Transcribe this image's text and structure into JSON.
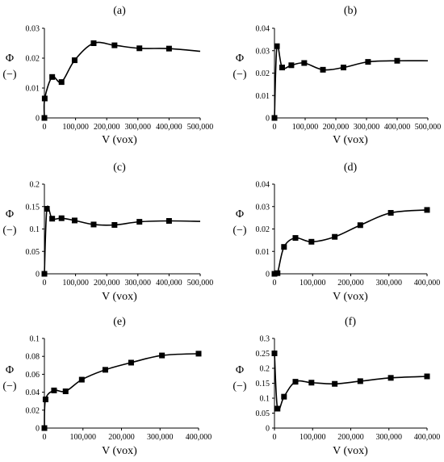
{
  "figure": {
    "chart_data": [
      {
        "type": "line",
        "label": "(a)",
        "ylabel_top": "Φ",
        "ylabel_bottom": "(−)",
        "xlabel": "V (vox)",
        "xlim": [
          0,
          500000
        ],
        "ylim": [
          0,
          0.03
        ],
        "xticks": [
          0,
          100000,
          200000,
          300000,
          400000,
          500000
        ],
        "xtick_labels": [
          "0",
          "100,000",
          "200,000",
          "300,000",
          "400,000",
          "500,000"
        ],
        "yticks": [
          0,
          0.01,
          0.02,
          0.03
        ],
        "ytick_labels": [
          "0",
          "0.01",
          "0.02",
          "0.03"
        ],
        "points": [
          [
            0,
            0
          ],
          [
            1000,
            0.0065
          ],
          [
            25000,
            0.0137
          ],
          [
            55000,
            0.012
          ],
          [
            97000,
            0.0193
          ],
          [
            158000,
            0.025
          ],
          [
            225000,
            0.0243
          ],
          [
            305000,
            0.0233
          ],
          [
            400000,
            0.0232
          ]
        ],
        "curve_end": [
          500000,
          0.0223
        ]
      },
      {
        "type": "line",
        "label": "(b)",
        "ylabel_top": "Φ",
        "ylabel_bottom": "(−)",
        "xlabel": "V (vox)",
        "xlim": [
          0,
          500000
        ],
        "ylim": [
          0,
          0.04
        ],
        "xticks": [
          0,
          100000,
          200000,
          300000,
          400000,
          500000
        ],
        "xtick_labels": [
          "0",
          "100,000",
          "200,000",
          "300,000",
          "400,000",
          "500,000"
        ],
        "yticks": [
          0,
          0.01,
          0.02,
          0.03,
          0.04
        ],
        "ytick_labels": [
          "0",
          "0.01",
          "0.02",
          "0.03",
          "0.04"
        ],
        "points": [
          [
            0,
            0
          ],
          [
            8000,
            0.032
          ],
          [
            25000,
            0.0225
          ],
          [
            55000,
            0.0235
          ],
          [
            97000,
            0.0245
          ],
          [
            158000,
            0.0215
          ],
          [
            225000,
            0.0225
          ],
          [
            305000,
            0.025
          ],
          [
            400000,
            0.0255
          ]
        ],
        "curve_end": [
          500000,
          0.0255
        ]
      },
      {
        "type": "line",
        "label": "(c)",
        "ylabel_top": "Φ",
        "ylabel_bottom": "(−)",
        "xlabel": "V (vox)",
        "xlim": [
          0,
          500000
        ],
        "ylim": [
          0,
          0.2
        ],
        "xticks": [
          0,
          100000,
          200000,
          300000,
          400000,
          500000
        ],
        "xtick_labels": [
          "0",
          "100,000",
          "200,000",
          "300,000",
          "400,000",
          "500,000"
        ],
        "yticks": [
          0,
          0.05,
          0.1,
          0.15,
          0.2
        ],
        "ytick_labels": [
          "0",
          "0.05",
          "0.1",
          "0.15",
          "0.2"
        ],
        "points": [
          [
            0,
            0
          ],
          [
            8000,
            0.145
          ],
          [
            25000,
            0.123
          ],
          [
            55000,
            0.124
          ],
          [
            97000,
            0.119
          ],
          [
            158000,
            0.11
          ],
          [
            225000,
            0.109
          ],
          [
            305000,
            0.116
          ],
          [
            400000,
            0.118
          ]
        ],
        "curve_end": [
          500000,
          0.117
        ]
      },
      {
        "type": "line",
        "label": "(d)",
        "ylabel_top": "Φ",
        "ylabel_bottom": "(−)",
        "xlabel": "V (vox)",
        "xlim": [
          0,
          400000
        ],
        "ylim": [
          0,
          0.04
        ],
        "xticks": [
          0,
          100000,
          200000,
          300000,
          400000
        ],
        "xtick_labels": [
          "0",
          "100,000",
          "200,000",
          "300,000",
          "400,000"
        ],
        "yticks": [
          0,
          0.01,
          0.02,
          0.03,
          0.04
        ],
        "ytick_labels": [
          "0",
          "0.01",
          "0.02",
          "0.03",
          "0.04"
        ],
        "points": [
          [
            0,
            0
          ],
          [
            8000,
            0.0003
          ],
          [
            25000,
            0.012
          ],
          [
            55000,
            0.016
          ],
          [
            97000,
            0.0143
          ],
          [
            158000,
            0.0165
          ],
          [
            225000,
            0.0217
          ],
          [
            305000,
            0.0272
          ],
          [
            400000,
            0.0285
          ]
        ]
      },
      {
        "type": "line",
        "label": "(e)",
        "ylabel_top": "Φ",
        "ylabel_bottom": "(−)",
        "xlabel": "V (vox)",
        "xlim": [
          0,
          400000
        ],
        "ylim": [
          0,
          0.1
        ],
        "xticks": [
          0,
          100000,
          200000,
          300000,
          400000
        ],
        "xtick_labels": [
          "0",
          "100,000",
          "200,000",
          "300,000",
          "400,000"
        ],
        "yticks": [
          0,
          0.02,
          0.04,
          0.06,
          0.08,
          0.1
        ],
        "ytick_labels": [
          "0",
          "0.02",
          "0.04",
          "0.06",
          "0.08",
          "0.1"
        ],
        "points": [
          [
            0,
            0
          ],
          [
            3000,
            0.032
          ],
          [
            25000,
            0.042
          ],
          [
            55000,
            0.041
          ],
          [
            97000,
            0.054
          ],
          [
            158000,
            0.065
          ],
          [
            225000,
            0.073
          ],
          [
            305000,
            0.081
          ],
          [
            400000,
            0.083
          ]
        ]
      },
      {
        "type": "line",
        "label": "(f)",
        "ylabel_top": "Φ",
        "ylabel_bottom": "(−)",
        "xlabel": "V (vox)",
        "xlim": [
          0,
          400000
        ],
        "ylim": [
          0,
          0.3
        ],
        "xticks": [
          0,
          100000,
          200000,
          300000,
          400000
        ],
        "xtick_labels": [
          "0",
          "100,000",
          "200,000",
          "300,000",
          "400,000"
        ],
        "yticks": [
          0,
          0.05,
          0.1,
          0.15,
          0.2,
          0.25,
          0.3
        ],
        "ytick_labels": [
          "0",
          "0.05",
          "0.1",
          "0.15",
          "0.2",
          "0.25",
          "0.3"
        ],
        "points": [
          [
            0,
            0.25
          ],
          [
            8000,
            0.065
          ],
          [
            25000,
            0.105
          ],
          [
            55000,
            0.155
          ],
          [
            97000,
            0.152
          ],
          [
            158000,
            0.148
          ],
          [
            225000,
            0.157
          ],
          [
            305000,
            0.168
          ],
          [
            400000,
            0.173
          ]
        ]
      }
    ]
  }
}
